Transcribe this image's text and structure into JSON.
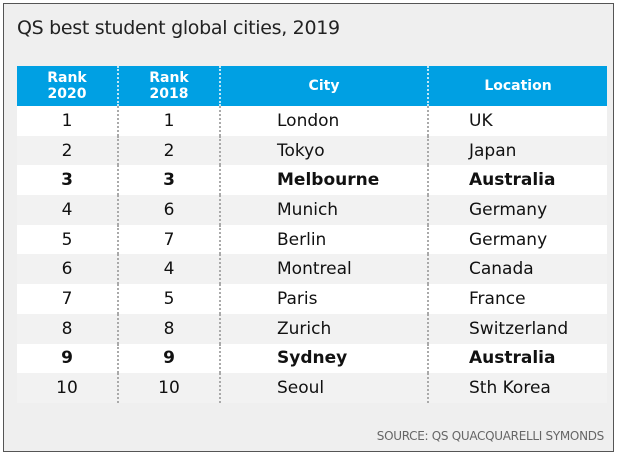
{
  "title": "QS best student global cities, 2019",
  "headers": [
    "Rank 2020",
    "Rank 2018",
    "City",
    "Location"
  ],
  "headers_lines": [
    [
      "Rank",
      "2020"
    ],
    [
      "Rank",
      "2018"
    ]
  ],
  "rows": [
    {
      "r2020": "1",
      "r2018": "1",
      "city": "London",
      "location": "UK",
      "bold": false
    },
    {
      "r2020": "2",
      "r2018": "2",
      "city": "Tokyo",
      "location": "Japan",
      "bold": false
    },
    {
      "r2020": "3",
      "r2018": "3",
      "city": "Melbourne",
      "location": "Australia",
      "bold": true
    },
    {
      "r2020": "4",
      "r2018": "6",
      "city": "Munich",
      "location": "Germany",
      "bold": false
    },
    {
      "r2020": "5",
      "r2018": "7",
      "city": "Berlin",
      "location": "Germany",
      "bold": false
    },
    {
      "r2020": "6",
      "r2018": "4",
      "city": "Montreal",
      "location": "Canada",
      "bold": false
    },
    {
      "r2020": "7",
      "r2018": "5",
      "city": "Paris",
      "location": "France",
      "bold": false
    },
    {
      "r2020": "8",
      "r2018": "8",
      "city": "Zurich",
      "location": "Switzerland",
      "bold": false
    },
    {
      "r2020": "9",
      "r2018": "9",
      "city": "Sydney",
      "location": "Australia",
      "bold": true
    },
    {
      "r2020": "10",
      "r2018": "10",
      "city": "Seoul",
      "location": "Sth Korea",
      "bold": false
    }
  ],
  "source": "SOURCE: QS QUACQUARELLI SYMONDS",
  "colors": {
    "header": "#00a0e3"
  }
}
